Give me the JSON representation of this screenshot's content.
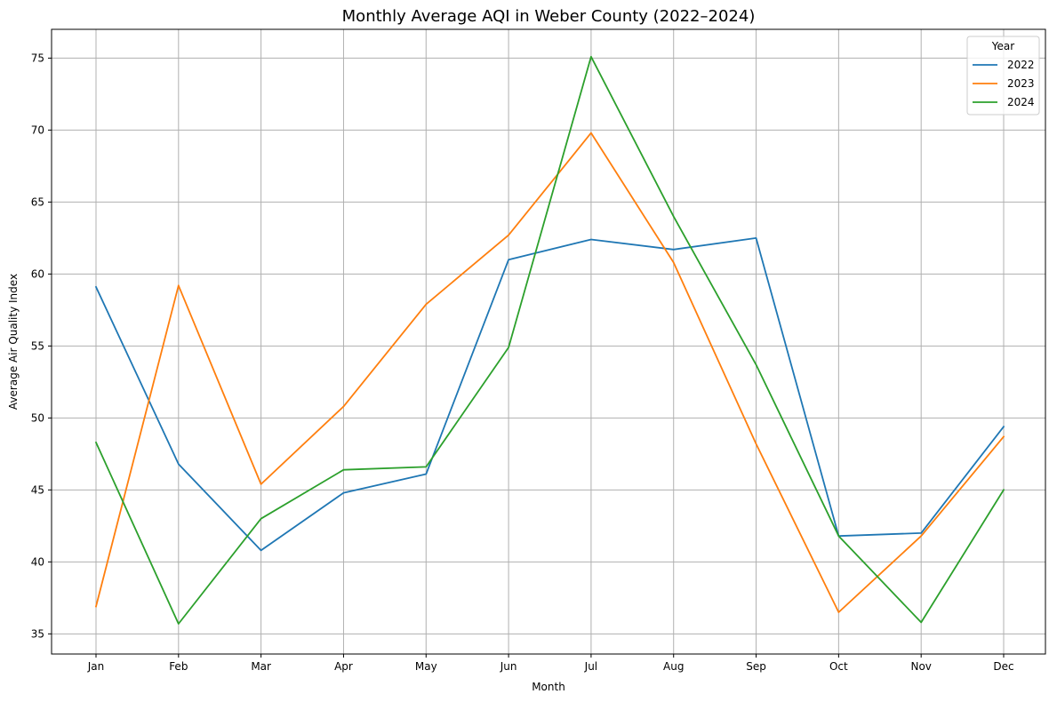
{
  "chart_data": {
    "type": "line",
    "title": "Monthly Average AQI in Weber County (2022–2024)",
    "xlabel": "Month",
    "ylabel": "Average Air Quality Index",
    "categories": [
      "Jan",
      "Feb",
      "Mar",
      "Apr",
      "May",
      "Jun",
      "Jul",
      "Aug",
      "Sep",
      "Oct",
      "Nov",
      "Dec"
    ],
    "ylim": [
      33.6,
      77
    ],
    "yticks": [
      35,
      40,
      45,
      50,
      55,
      60,
      65,
      70,
      75
    ],
    "grid": true,
    "legend": {
      "title": "Year",
      "placement": "top-right"
    },
    "series": [
      {
        "name": "2022",
        "color": "#1f77b4",
        "values": [
          59.1,
          46.8,
          40.8,
          44.8,
          46.1,
          61.0,
          62.4,
          61.7,
          62.5,
          41.8,
          42.0,
          49.4
        ]
      },
      {
        "name": "2023",
        "color": "#ff7f0e",
        "values": [
          36.9,
          59.2,
          45.4,
          50.8,
          57.9,
          62.7,
          69.8,
          60.8,
          48.2,
          36.5,
          41.8,
          48.7
        ]
      },
      {
        "name": "2024",
        "color": "#2ca02c",
        "values": [
          48.3,
          35.7,
          43.0,
          46.4,
          46.6,
          54.9,
          75.1,
          64.0,
          53.7,
          41.8,
          35.8,
          45.0
        ]
      }
    ]
  }
}
